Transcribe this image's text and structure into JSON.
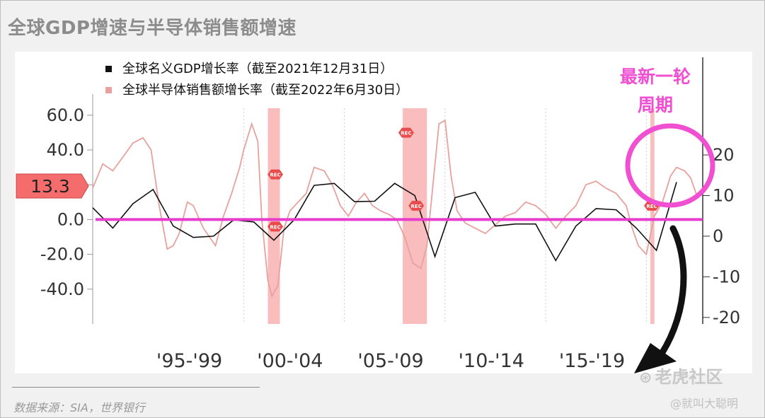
{
  "title": "全球GDP增速与半导体销售额增速",
  "source_note": "数据来源：SIA，世界银行",
  "watermark": {
    "logo_text": "老虎社区",
    "user": "@就叫大聪明"
  },
  "annotation": {
    "cycle_label_line1": "最新一轮",
    "cycle_label_line2": "周期"
  },
  "rec_label": "REC",
  "colors": {
    "semi": "#e8a19c",
    "gdp": "#111111",
    "zero": "#e83ccf",
    "highlight": "#f04fd2",
    "recession": "#f7a7a7"
  },
  "chart_data": {
    "type": "line",
    "title": "",
    "legend": [
      {
        "key": "gdp",
        "label": "全球名义GDP增长率（截至2021年12月31日）"
      },
      {
        "key": "semi",
        "label": "全球半导体销售额增长率（截至2022年6月30日）"
      }
    ],
    "legend_placement": "top-left",
    "x_ticks": [
      "'95-'99",
      "'00-'04",
      "'05-'09",
      "'10-'14",
      "'15-'19"
    ],
    "x_range": [
      1992.5,
      2022.8
    ],
    "y_left": {
      "ticks": [
        "60.0",
        "40.0",
        "20.0",
        "0.0",
        "-20.0",
        "-40.0"
      ],
      "range": [
        -60,
        64
      ]
    },
    "y_right": {
      "ticks": [
        "20",
        "10",
        "0",
        "-10",
        "-20"
      ],
      "range": [
        -21.6,
        31.5
      ]
    },
    "current_value_label": "13.3",
    "recessions": [
      [
        2001.2,
        2001.8
      ],
      [
        2007.9,
        2009.1
      ],
      [
        2020.2,
        2020.4
      ]
    ],
    "gdp_series": {
      "name": "全球名义GDP增长率",
      "axis": "right",
      "x": [
        1992.5,
        1993.5,
        1994.5,
        1995.5,
        1996.5,
        1997.5,
        1998.5,
        1999.5,
        2000.5,
        2001.5,
        2002.5,
        2003.5,
        2004.5,
        2005.5,
        2006.5,
        2007.5,
        2008.5,
        2009.5,
        2010.5,
        2011.5,
        2012.5,
        2013.5,
        2014.5,
        2015.5,
        2016.5,
        2017.5,
        2018.5,
        2019.5,
        2020.5,
        2021.5
      ],
      "values": [
        7,
        2,
        8,
        11.5,
        2.5,
        -0.3,
        0,
        4,
        3.5,
        -1,
        4,
        12.5,
        13,
        8.5,
        8.6,
        13,
        10,
        -5,
        9.5,
        10.8,
        2.5,
        3,
        3,
        -6,
        2.5,
        6.8,
        6.5,
        2,
        -3.5,
        13.3
      ]
    },
    "semi_series": {
      "name": "全球半导体销售额增长率",
      "axis": "left",
      "x": [
        1992.5,
        1993.0,
        1993.5,
        1994.0,
        1994.5,
        1995.0,
        1995.4,
        1995.8,
        1996.2,
        1996.5,
        1996.8,
        1997.2,
        1997.5,
        1997.8,
        1998.0,
        1998.3,
        1998.6,
        1999.0,
        1999.4,
        1999.8,
        2000.0,
        2000.4,
        2000.7,
        2000.9,
        2001.2,
        2001.4,
        2001.7,
        2002.0,
        2002.3,
        2002.7,
        2003.1,
        2003.5,
        2004.0,
        2004.4,
        2004.8,
        2005.2,
        2005.6,
        2006.0,
        2006.4,
        2006.8,
        2007.2,
        2007.6,
        2008.0,
        2008.4,
        2008.8,
        2009.1,
        2009.4,
        2009.7,
        2010.0,
        2010.3,
        2010.6,
        2011.0,
        2011.5,
        2012.0,
        2012.5,
        2013.0,
        2013.5,
        2014.0,
        2014.5,
        2015.0,
        2015.5,
        2016.0,
        2016.5,
        2017.0,
        2017.5,
        2018.0,
        2018.5,
        2019.0,
        2019.3,
        2019.6,
        2020.0,
        2020.4,
        2020.8,
        2021.2,
        2021.5,
        2021.9,
        2022.2,
        2022.5
      ],
      "values": [
        18,
        32,
        28,
        36,
        44,
        47,
        40,
        8,
        -17,
        -15,
        -8,
        10,
        8,
        0,
        -5,
        -10,
        -15,
        2,
        15,
        30,
        40,
        55,
        45,
        0,
        -35,
        -44,
        -38,
        -5,
        5,
        10,
        15,
        30,
        28,
        20,
        8,
        2,
        10,
        15,
        8,
        5,
        3,
        0,
        -10,
        -25,
        -28,
        -15,
        20,
        55,
        57,
        25,
        5,
        -2,
        -5,
        -8,
        -3,
        2,
        4,
        10,
        8,
        3,
        -5,
        2,
        8,
        20,
        22,
        18,
        15,
        8,
        -5,
        -15,
        -20,
        2,
        10,
        25,
        30,
        28,
        24,
        14
      ]
    }
  }
}
